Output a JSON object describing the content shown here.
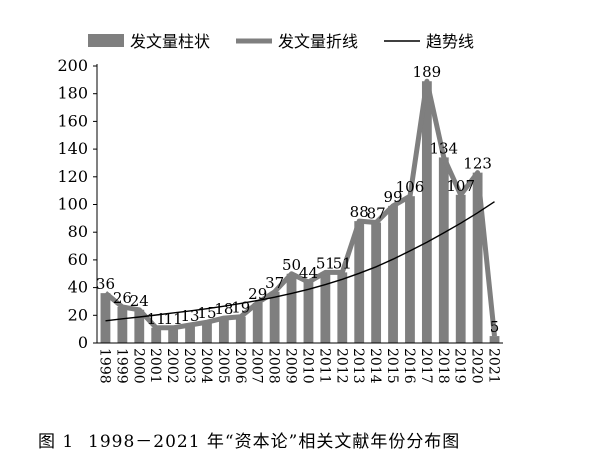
{
  "figure_caption": {
    "number": "图 1",
    "text": "1998－2021 年“资本论”相关文献年份分布图"
  },
  "chart_data": {
    "type": "bar",
    "title": "",
    "xlabel": "",
    "ylabel": "",
    "ylim": [
      0,
      200
    ],
    "yticks": [
      0,
      20,
      40,
      60,
      80,
      100,
      120,
      140,
      160,
      180,
      200
    ],
    "grid": false,
    "legend_position": "top",
    "categories": [
      "1998",
      "1999",
      "2000",
      "2001",
      "2002",
      "2003",
      "2004",
      "2005",
      "2006",
      "2007",
      "2008",
      "2009",
      "2010",
      "2011",
      "2012",
      "2013",
      "2014",
      "2015",
      "2016",
      "2017",
      "2018",
      "2019",
      "2020",
      "2021"
    ],
    "series": [
      {
        "name": "发文量柱状",
        "kind": "bar",
        "color": "#7f7f7f",
        "values": [
          36,
          26,
          24,
          11,
          11,
          13,
          15,
          18,
          19,
          29,
          37,
          50,
          44,
          51,
          51,
          88,
          87,
          99,
          106,
          189,
          134,
          107,
          123,
          5
        ]
      },
      {
        "name": "发文量折线",
        "kind": "line",
        "color": "#7f7f7f",
        "values": [
          36,
          26,
          24,
          11,
          11,
          13,
          15,
          18,
          19,
          29,
          37,
          50,
          44,
          51,
          51,
          88,
          87,
          99,
          106,
          189,
          134,
          107,
          123,
          5
        ]
      },
      {
        "name": "趋势线",
        "kind": "trend",
        "color": "#000000",
        "values": [
          16,
          17.5,
          18.8,
          20.2,
          21.7,
          23.2,
          24.8,
          26.6,
          28.6,
          30.7,
          33.1,
          35.8,
          38.8,
          42.2,
          46,
          50.3,
          55,
          60.5,
          66.5,
          72.8,
          79.5,
          86.5,
          94,
          102
        ]
      }
    ],
    "data_labels": [
      "36",
      "26",
      "24",
      "11",
      "11",
      "13",
      "15",
      "18",
      "19",
      "29",
      "37",
      "50",
      "44",
      "51",
      "51",
      "88",
      "87",
      "99",
      "106",
      "189",
      "134",
      "107",
      "123",
      "5"
    ]
  }
}
